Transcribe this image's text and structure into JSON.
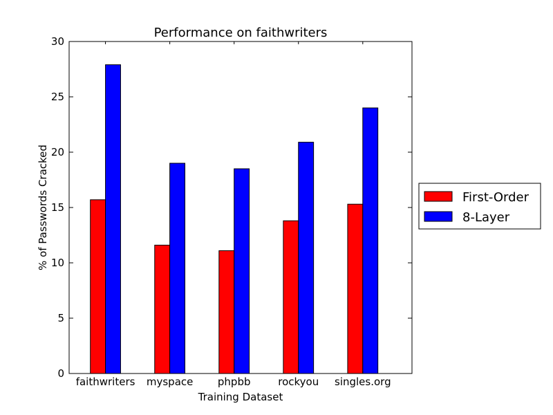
{
  "chart_data": {
    "type": "bar",
    "title": "Performance on faithwriters",
    "xlabel": "Training Dataset",
    "ylabel": "% of Passwords Cracked",
    "categories": [
      "faithwriters",
      "myspace",
      "phpbb",
      "rockyou",
      "singles.org"
    ],
    "series": [
      {
        "name": "First-Order",
        "color": "#ff0000",
        "values": [
          15.7,
          11.6,
          11.1,
          13.8,
          15.3
        ]
      },
      {
        "name": "8-Layer",
        "color": "#0000ff",
        "values": [
          27.9,
          19.0,
          18.5,
          20.9,
          24.0
        ]
      }
    ],
    "ylim": [
      0,
      30
    ],
    "yticks": [
      0,
      5,
      10,
      15,
      20,
      25,
      30
    ],
    "grid": false,
    "legend_position": "right"
  }
}
